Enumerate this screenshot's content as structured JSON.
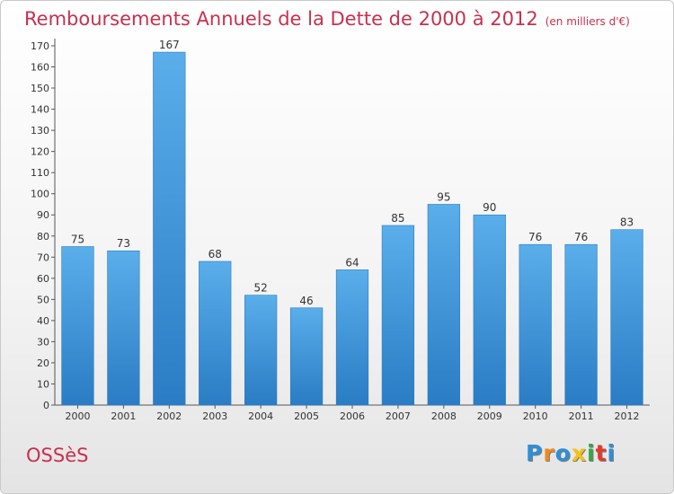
{
  "chart_data": {
    "type": "bar",
    "title": "Remboursements Annuels de la Dette de 2000 à 2012",
    "subtitle": "(en milliers d'€)",
    "categories": [
      "2000",
      "2001",
      "2002",
      "2003",
      "2004",
      "2005",
      "2006",
      "2007",
      "2008",
      "2009",
      "2010",
      "2011",
      "2012"
    ],
    "values": [
      75,
      73,
      167,
      68,
      52,
      46,
      64,
      85,
      95,
      90,
      76,
      76,
      83
    ],
    "ylim": [
      0,
      170
    ],
    "ytick_step": 10,
    "grid": false,
    "bar_color": "#4a9de0",
    "bar_color_dark": "#2a7cc4"
  },
  "footer": {
    "commune": "OSSèS",
    "logo_letters": [
      "P",
      "r",
      "o",
      "x",
      "i",
      "t",
      "i"
    ],
    "logo_colors": [
      "#2f8fd6",
      "#f08a1c",
      "#2f8fd6",
      "#f4c21a",
      "#35a844",
      "#e23a2e",
      "#2f8fd6"
    ]
  }
}
